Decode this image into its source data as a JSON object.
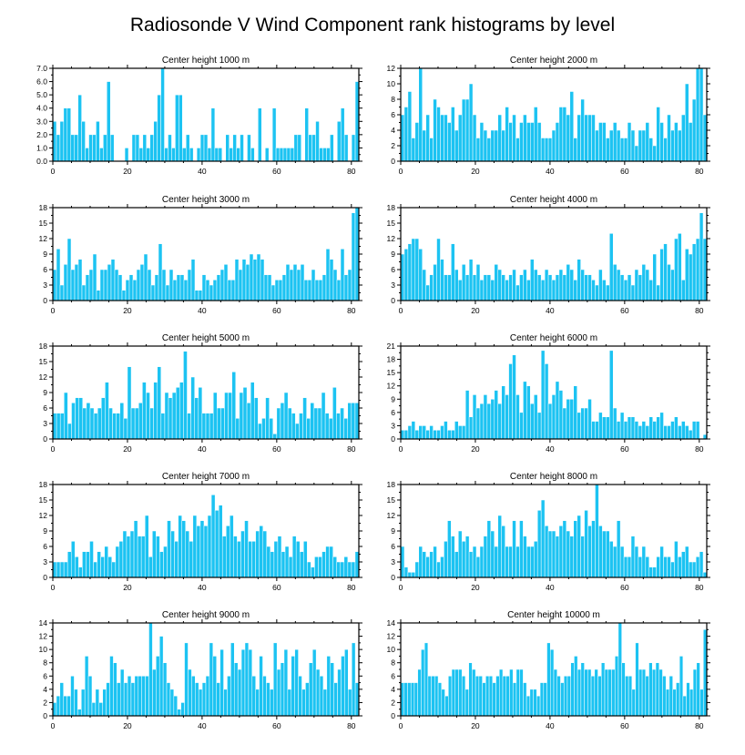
{
  "figure": {
    "title": "Radiosonde V Wind Component rank histograms by level",
    "bar_color": "#1cc3f2",
    "bar_edge_color": "#ffffff"
  },
  "chart_data": [
    {
      "type": "bar",
      "title": "Center height 1000 m",
      "xlim": [
        0,
        82
      ],
      "xticks": [
        0,
        20,
        40,
        60,
        80
      ],
      "ylim": [
        0,
        7
      ],
      "yticks": [
        0,
        1,
        2,
        3,
        4,
        5,
        6,
        7
      ],
      "ytick_labels": [
        "0.0",
        "1.0",
        "2.0",
        "3.0",
        "4.0",
        "5.0",
        "6.0",
        "7.0"
      ],
      "values": [
        3,
        2,
        3,
        4,
        4,
        2,
        2,
        5,
        3,
        1,
        2,
        2,
        3,
        1,
        2,
        6,
        2,
        0,
        0,
        0,
        1,
        0,
        2,
        2,
        1,
        2,
        1,
        2,
        3,
        5,
        7,
        1,
        2,
        1,
        5,
        5,
        1,
        2,
        1,
        0,
        1,
        2,
        2,
        1,
        4,
        1,
        1,
        0,
        2,
        1,
        2,
        1,
        2,
        0,
        2,
        1,
        0,
        4,
        0,
        1,
        0,
        4,
        1,
        1,
        1,
        1,
        1,
        2,
        2,
        0,
        4,
        2,
        2,
        3,
        1,
        1,
        1,
        2,
        0,
        3,
        4,
        2,
        0,
        2,
        6
      ]
    },
    {
      "type": "bar",
      "title": "Center height 2000 m",
      "xlim": [
        0,
        82
      ],
      "xticks": [
        0,
        20,
        40,
        60,
        80
      ],
      "ylim": [
        0,
        12
      ],
      "yticks": [
        0,
        2,
        4,
        6,
        8,
        10,
        12
      ],
      "ytick_labels": [
        "0",
        "2",
        "4",
        "6",
        "8",
        "10",
        "12"
      ],
      "values": [
        6,
        7,
        9,
        3,
        5,
        12,
        4,
        6,
        3,
        8,
        7,
        6,
        6,
        5,
        7,
        4,
        6,
        8,
        8,
        10,
        6,
        3,
        5,
        4,
        3,
        4,
        4,
        6,
        4,
        7,
        5,
        6,
        3,
        5,
        6,
        5,
        5,
        7,
        5,
        3,
        3,
        3,
        4,
        5,
        7,
        7,
        6,
        9,
        3,
        6,
        8,
        6,
        6,
        6,
        4,
        5,
        5,
        3,
        4,
        5,
        4,
        3,
        3,
        5,
        4,
        2,
        4,
        4,
        5,
        3,
        2,
        7,
        5,
        3,
        6,
        4,
        5,
        4,
        6,
        10,
        5,
        8,
        12,
        12,
        6
      ]
    },
    {
      "type": "bar",
      "title": "Center height 3000 m",
      "xlim": [
        0,
        82
      ],
      "xticks": [
        0,
        20,
        40,
        60,
        80
      ],
      "ylim": [
        0,
        18
      ],
      "yticks": [
        0,
        3,
        6,
        9,
        12,
        15,
        18
      ],
      "ytick_labels": [
        "0",
        "3",
        "6",
        "9",
        "12",
        "15",
        "18"
      ],
      "values": [
        6,
        10,
        3,
        7,
        12,
        6,
        7,
        8,
        3,
        5,
        6,
        9,
        2,
        6,
        6,
        7,
        8,
        6,
        5,
        2,
        4,
        5,
        4,
        6,
        7,
        9,
        6,
        3,
        5,
        11,
        6,
        3,
        6,
        4,
        5,
        5,
        4,
        6,
        8,
        2,
        2,
        5,
        4,
        3,
        4,
        5,
        6,
        7,
        4,
        4,
        8,
        6,
        8,
        7,
        9,
        8,
        9,
        8,
        5,
        5,
        3,
        4,
        4,
        5,
        7,
        6,
        7,
        6,
        7,
        4,
        4,
        6,
        4,
        4,
        5,
        10,
        8,
        6,
        4,
        10,
        5,
        6,
        17,
        18
      ]
    },
    {
      "type": "bar",
      "title": "Center height 4000 m",
      "xlim": [
        0,
        82
      ],
      "xticks": [
        0,
        20,
        40,
        60,
        80
      ],
      "ylim": [
        0,
        18
      ],
      "yticks": [
        0,
        3,
        6,
        9,
        12,
        15,
        18
      ],
      "ytick_labels": [
        "0",
        "3",
        "6",
        "9",
        "12",
        "15",
        "18"
      ],
      "values": [
        9,
        10,
        11,
        12,
        12,
        10,
        6,
        3,
        5,
        7,
        12,
        8,
        5,
        5,
        11,
        6,
        4,
        7,
        5,
        8,
        5,
        7,
        4,
        5,
        5,
        4,
        7,
        6,
        5,
        4,
        5,
        6,
        3,
        5,
        6,
        4,
        8,
        6,
        5,
        4,
        6,
        5,
        4,
        5,
        6,
        5,
        7,
        6,
        4,
        8,
        6,
        5,
        5,
        4,
        3,
        6,
        4,
        3,
        13,
        7,
        6,
        5,
        4,
        5,
        3,
        6,
        5,
        7,
        6,
        4,
        9,
        3,
        10,
        11,
        7,
        6,
        12,
        13,
        4,
        10,
        9,
        11,
        12,
        17,
        12
      ]
    },
    {
      "type": "bar",
      "title": "Center height 5000 m",
      "xlim": [
        0,
        82
      ],
      "xticks": [
        0,
        20,
        40,
        60,
        80
      ],
      "ylim": [
        0,
        18
      ],
      "yticks": [
        0,
        3,
        6,
        9,
        12,
        15,
        18
      ],
      "ytick_labels": [
        "0",
        "3",
        "6",
        "9",
        "12",
        "15",
        "18"
      ],
      "values": [
        5,
        5,
        5,
        9,
        3,
        7,
        8,
        8,
        6,
        7,
        6,
        5,
        6,
        8,
        11,
        6,
        5,
        5,
        7,
        4,
        14,
        6,
        6,
        7,
        11,
        9,
        6,
        11,
        14,
        5,
        9,
        8,
        9,
        10,
        11,
        17,
        5,
        12,
        8,
        10,
        5,
        5,
        5,
        9,
        6,
        6,
        9,
        9,
        13,
        4,
        9,
        10,
        7,
        11,
        8,
        3,
        4,
        8,
        4,
        1,
        6,
        7,
        9,
        6,
        5,
        3,
        5,
        8,
        4,
        7,
        6,
        6,
        9,
        5,
        4,
        10,
        5,
        6,
        4,
        7,
        7,
        7
      ]
    },
    {
      "type": "bar",
      "title": "Center height 6000 m",
      "xlim": [
        0,
        82
      ],
      "xticks": [
        0,
        20,
        40,
        60,
        80
      ],
      "ylim": [
        0,
        21
      ],
      "yticks": [
        0,
        3,
        6,
        9,
        12,
        15,
        18,
        21
      ],
      "ytick_labels": [
        "0",
        "3",
        "6",
        "9",
        "12",
        "15",
        "18",
        "21"
      ],
      "values": [
        2,
        2,
        3,
        4,
        2,
        3,
        3,
        2,
        3,
        2,
        2,
        3,
        4,
        2,
        2,
        4,
        3,
        3,
        11,
        5,
        10,
        7,
        8,
        10,
        8,
        9,
        11,
        8,
        12,
        10,
        17,
        19,
        10,
        6,
        13,
        12,
        8,
        10,
        6,
        20,
        17,
        8,
        10,
        13,
        11,
        7,
        9,
        9,
        12,
        6,
        7,
        7,
        9,
        4,
        4,
        6,
        5,
        5,
        20,
        7,
        4,
        6,
        4,
        5,
        5,
        4,
        3,
        4,
        3,
        5,
        4,
        5,
        6,
        3,
        3,
        4,
        5,
        3,
        4,
        3,
        2,
        4,
        4,
        0,
        1
      ]
    },
    {
      "type": "bar",
      "title": "Center height 7000 m",
      "xlim": [
        0,
        82
      ],
      "xticks": [
        0,
        20,
        40,
        60,
        80
      ],
      "ylim": [
        0,
        18
      ],
      "yticks": [
        0,
        3,
        6,
        9,
        12,
        15,
        18
      ],
      "ytick_labels": [
        "0",
        "3",
        "6",
        "9",
        "12",
        "15",
        "18"
      ],
      "values": [
        3,
        3,
        3,
        3,
        5,
        7,
        4,
        2,
        5,
        5,
        7,
        3,
        5,
        4,
        6,
        4,
        3,
        6,
        7,
        9,
        8,
        9,
        11,
        8,
        8,
        12,
        4,
        9,
        8,
        5,
        6,
        11,
        9,
        7,
        12,
        11,
        9,
        7,
        12,
        10,
        11,
        10,
        12,
        16,
        13,
        14,
        8,
        10,
        12,
        8,
        7,
        9,
        11,
        7,
        7,
        9,
        10,
        9,
        6,
        5,
        7,
        8,
        5,
        6,
        4,
        8,
        7,
        5,
        7,
        3,
        2,
        4,
        4,
        5,
        6,
        6,
        4,
        3,
        3,
        4,
        3,
        3,
        5
      ]
    },
    {
      "type": "bar",
      "title": "Center height 8000 m",
      "xlim": [
        0,
        82
      ],
      "xticks": [
        0,
        20,
        40,
        60,
        80
      ],
      "ylim": [
        0,
        18
      ],
      "yticks": [
        0,
        3,
        6,
        9,
        12,
        15,
        18
      ],
      "ytick_labels": [
        "0",
        "3",
        "6",
        "9",
        "12",
        "15",
        "18"
      ],
      "values": [
        6,
        2,
        1,
        1,
        3,
        6,
        5,
        4,
        5,
        6,
        3,
        4,
        7,
        11,
        8,
        5,
        9,
        7,
        8,
        5,
        6,
        4,
        6,
        8,
        11,
        9,
        6,
        12,
        10,
        6,
        6,
        11,
        6,
        11,
        8,
        6,
        6,
        7,
        13,
        15,
        10,
        9,
        9,
        8,
        10,
        11,
        9,
        8,
        11,
        12,
        8,
        13,
        10,
        11,
        18,
        10,
        9,
        9,
        7,
        6,
        11,
        6,
        4,
        4,
        8,
        6,
        4,
        6,
        4,
        2,
        2,
        4,
        6,
        4,
        4,
        3,
        7,
        4,
        5,
        6,
        3,
        3,
        4,
        5,
        1
      ]
    },
    {
      "type": "bar",
      "title": "Center height 9000 m",
      "xlim": [
        0,
        82
      ],
      "xticks": [
        0,
        20,
        40,
        60,
        80
      ],
      "ylim": [
        0,
        14
      ],
      "yticks": [
        0,
        2,
        4,
        6,
        8,
        10,
        12,
        14
      ],
      "ytick_labels": [
        "0",
        "2",
        "4",
        "6",
        "8",
        "10",
        "12",
        "14"
      ],
      "values": [
        2,
        3,
        5,
        3,
        3,
        6,
        4,
        1,
        4,
        9,
        6,
        2,
        4,
        2,
        4,
        5,
        9,
        8,
        5,
        7,
        5,
        6,
        5,
        6,
        6,
        6,
        6,
        14,
        7,
        9,
        12,
        8,
        5,
        4,
        3,
        1,
        2,
        11,
        7,
        6,
        5,
        4,
        5,
        6,
        11,
        9,
        5,
        10,
        4,
        6,
        11,
        8,
        7,
        10,
        11,
        10,
        6,
        4,
        9,
        6,
        5,
        4,
        11,
        7,
        8,
        10,
        4,
        9,
        10,
        6,
        4,
        5,
        8,
        10,
        7,
        6,
        4,
        9,
        8,
        5,
        7,
        9,
        10,
        4,
        11,
        5
      ]
    },
    {
      "type": "bar",
      "title": "Center height 10000 m",
      "xlim": [
        0,
        82
      ],
      "xticks": [
        0,
        20,
        40,
        60,
        80
      ],
      "ylim": [
        0,
        14
      ],
      "yticks": [
        0,
        2,
        4,
        6,
        8,
        10,
        12,
        14
      ],
      "ytick_labels": [
        "0",
        "2",
        "4",
        "6",
        "8",
        "10",
        "12",
        "14"
      ],
      "values": [
        5,
        5,
        5,
        5,
        5,
        7,
        10,
        11,
        6,
        6,
        6,
        5,
        4,
        3,
        6,
        7,
        7,
        7,
        6,
        4,
        8,
        7,
        6,
        6,
        5,
        6,
        6,
        5,
        6,
        7,
        6,
        6,
        7,
        5,
        7,
        7,
        5,
        3,
        4,
        4,
        3,
        5,
        5,
        11,
        10,
        7,
        6,
        5,
        6,
        6,
        8,
        9,
        7,
        8,
        7,
        7,
        6,
        7,
        6,
        8,
        7,
        7,
        7,
        9,
        14,
        8,
        6,
        6,
        4,
        11,
        7,
        7,
        6,
        8,
        7,
        8,
        7,
        6,
        4,
        6,
        4,
        5,
        9,
        3,
        5,
        4,
        7,
        8,
        4,
        13
      ]
    }
  ]
}
